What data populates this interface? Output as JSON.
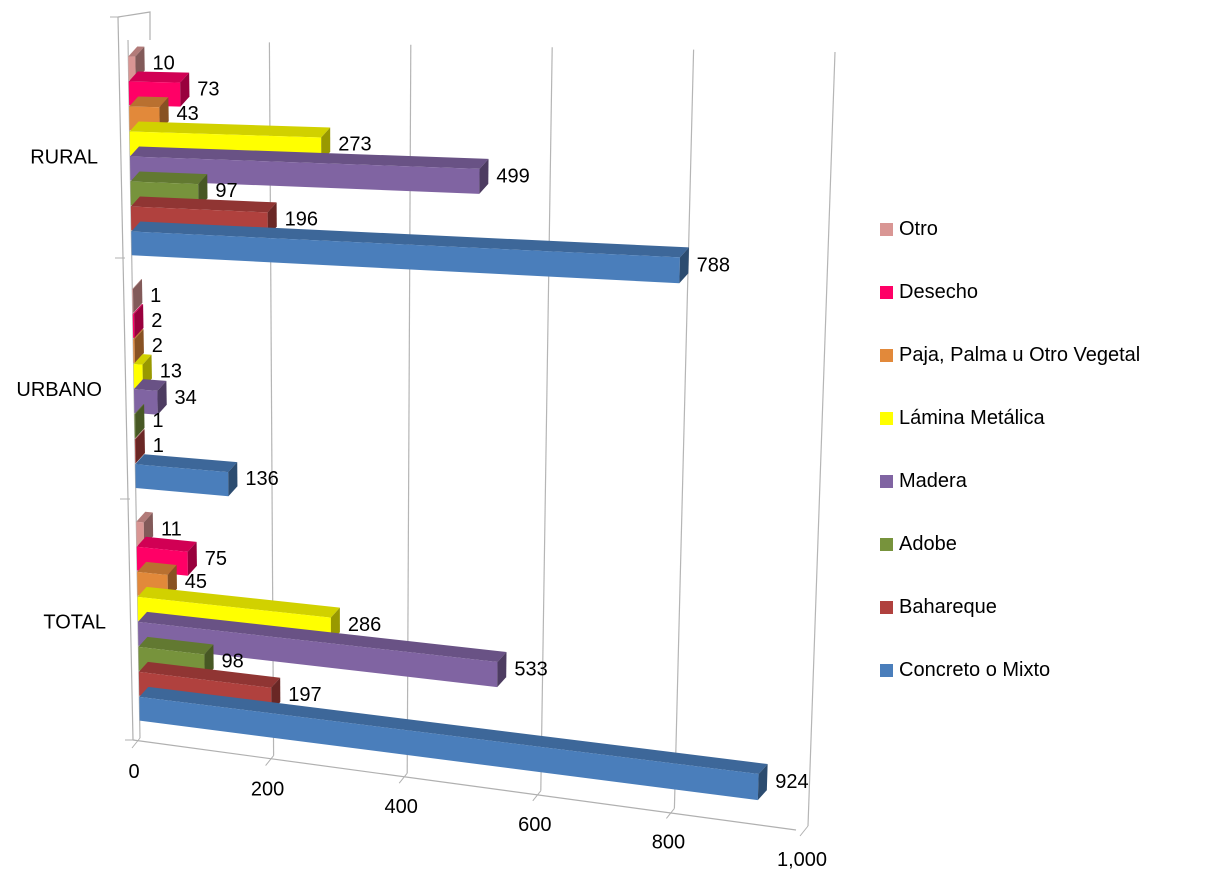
{
  "chart_data": {
    "type": "bar",
    "orientation": "horizontal",
    "style": "3d",
    "categories": [
      "RURAL",
      "URBANO",
      "TOTAL"
    ],
    "series": [
      {
        "name": "Otro",
        "color": "#D99694",
        "values": [
          10,
          1,
          11
        ]
      },
      {
        "name": "Desecho",
        "color": "#FF0066",
        "values": [
          73,
          2,
          75
        ]
      },
      {
        "name": "Paja, Palma u Otro Vegetal",
        "color": "#E2893A",
        "values": [
          43,
          2,
          45
        ]
      },
      {
        "name": "Lámina Metálica",
        "color": "#FFFF00",
        "values": [
          273,
          13,
          286
        ]
      },
      {
        "name": "Madera",
        "color": "#8064A2",
        "values": [
          499,
          34,
          533
        ]
      },
      {
        "name": "Adobe",
        "color": "#77933C",
        "values": [
          97,
          1,
          98
        ]
      },
      {
        "name": "Bahareque",
        "color": "#B0413E",
        "values": [
          196,
          1,
          197
        ]
      },
      {
        "name": "Concreto o Mixto",
        "color": "#4A7EBB",
        "values": [
          788,
          136,
          924
        ]
      }
    ],
    "x_ticks": [
      "0",
      "200",
      "400",
      "600",
      "800",
      "1,000"
    ],
    "xlim": [
      0,
      1000
    ],
    "title": "",
    "xlabel": "",
    "ylabel": "",
    "grid": true,
    "legend_position": "right",
    "legend_order": [
      "Otro",
      "Desecho",
      "Paja, Palma u Otro Vegetal",
      "Lámina Metálica",
      "Madera",
      "Adobe",
      "Bahareque",
      "Concreto o Mixto"
    ]
  }
}
